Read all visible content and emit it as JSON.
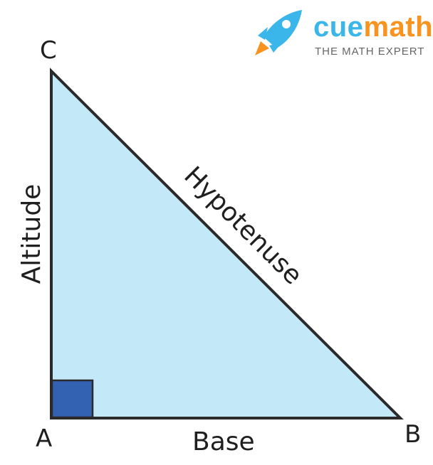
{
  "vertices": {
    "a": "A",
    "b": "B",
    "c": "C"
  },
  "sides": {
    "base": "Base",
    "altitude": "Altitude",
    "hypotenuse": "Hypotenuse"
  },
  "logo": {
    "word_part1": "cue",
    "word_part2": "math",
    "tagline": "THE MATH EXPERT",
    "color_part1": "#3bb6ea",
    "color_part2": "#f7931e"
  },
  "colors": {
    "triangle_fill": "#c3e8f8",
    "outline": "#2a2a2a",
    "right_angle_fill": "#3462b2"
  },
  "icons": [
    "rocket-icon"
  ]
}
